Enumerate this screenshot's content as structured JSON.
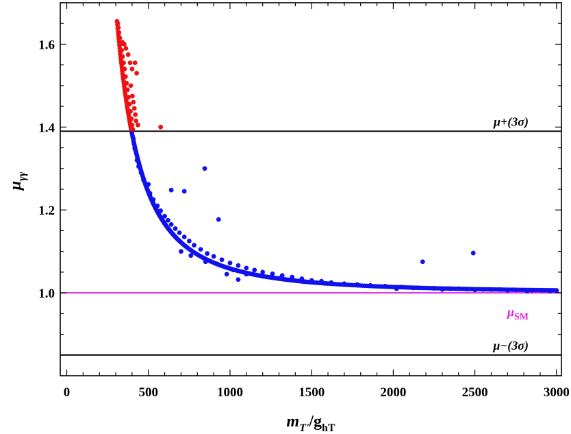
{
  "chart_data": {
    "type": "scatter",
    "xlim": [
      -40,
      3030
    ],
    "ylim": [
      0.8,
      1.7
    ],
    "x_ticks": [
      0,
      500,
      1000,
      1500,
      2000,
      2500,
      3000
    ],
    "y_ticks": [
      1.0,
      1.2,
      1.4,
      1.6
    ],
    "x_tick_labels": [
      "0",
      "500",
      "1000",
      "1500",
      "2000",
      "2500",
      "3000"
    ],
    "y_tick_labels": [
      "1.0",
      "1.2",
      "1.4",
      "1.6"
    ],
    "x_minor_step": 100,
    "y_minor_step": 0.05,
    "xlabel": {
      "base": "m",
      "sub": "T'",
      "rest": "/g",
      "sub2": "hT"
    },
    "ylabel": {
      "base": "μ",
      "sub": "γγ"
    },
    "reference_lines": [
      {
        "name": "mu-plus-3sigma",
        "y": 1.39,
        "color": "#000000",
        "label": "μ+(3σ)"
      },
      {
        "name": "mu-sm",
        "y": 1.0,
        "color": "#e020e0",
        "label_base": "μ",
        "label_sub": "SM"
      },
      {
        "name": "mu-minus-3sigma",
        "y": 0.85,
        "color": "#000000",
        "label": "μ−(3σ)"
      }
    ],
    "curve": {
      "a": 34.58,
      "b": -0.26,
      "c": 1.0023,
      "x_start": 308
    },
    "series": [
      {
        "name": "excluded",
        "color": "#ee1111",
        "points": [
          [
            308,
            1.655
          ],
          [
            312,
            1.65
          ],
          [
            316,
            1.64
          ],
          [
            320,
            1.628
          ],
          [
            325,
            1.615
          ],
          [
            330,
            1.6
          ],
          [
            336,
            1.585
          ],
          [
            342,
            1.57
          ],
          [
            348,
            1.555
          ],
          [
            354,
            1.54
          ],
          [
            360,
            1.522
          ],
          [
            366,
            1.506
          ],
          [
            372,
            1.49
          ],
          [
            378,
            1.472
          ],
          [
            384,
            1.455
          ],
          [
            390,
            1.438
          ],
          [
            396,
            1.42
          ],
          [
            400,
            1.405
          ],
          [
            404,
            1.395
          ],
          [
            340,
            1.605
          ],
          [
            352,
            1.6
          ],
          [
            362,
            1.59
          ],
          [
            376,
            1.575
          ],
          [
            388,
            1.555
          ],
          [
            400,
            1.54
          ],
          [
            418,
            1.555
          ],
          [
            428,
            1.53
          ],
          [
            392,
            1.5
          ],
          [
            402,
            1.475
          ],
          [
            408,
            1.46
          ],
          [
            414,
            1.445
          ],
          [
            420,
            1.43
          ],
          [
            424,
            1.415
          ],
          [
            436,
            1.405
          ],
          [
            575,
            1.4
          ]
        ]
      },
      {
        "name": "allowed",
        "color": "#1111ee",
        "points": [
          [
            408,
            1.372
          ],
          [
            412,
            1.36
          ],
          [
            416,
            1.348
          ],
          [
            430,
            1.32
          ],
          [
            440,
            1.305
          ],
          [
            455,
            1.29
          ],
          [
            470,
            1.272
          ],
          [
            490,
            1.255
          ],
          [
            510,
            1.24
          ],
          [
            530,
            1.225
          ],
          [
            555,
            1.21
          ],
          [
            575,
            1.198
          ],
          [
            600,
            1.185
          ],
          [
            620,
            1.175
          ],
          [
            640,
            1.165
          ],
          [
            665,
            1.155
          ],
          [
            690,
            1.145
          ],
          [
            720,
            1.135
          ],
          [
            750,
            1.125
          ],
          [
            780,
            1.115
          ],
          [
            820,
            1.105
          ],
          [
            860,
            1.095
          ],
          [
            900,
            1.088
          ],
          [
            950,
            1.08
          ],
          [
            1000,
            1.072
          ],
          [
            1050,
            1.066
          ],
          [
            1100,
            1.06
          ],
          [
            1150,
            1.055
          ],
          [
            1200,
            1.05
          ],
          [
            1260,
            1.046
          ],
          [
            1320,
            1.042
          ],
          [
            1380,
            1.038
          ],
          [
            1440,
            1.034
          ],
          [
            1500,
            1.03
          ],
          [
            1560,
            1.028
          ],
          [
            1620,
            1.025
          ],
          [
            1700,
            1.022
          ],
          [
            1780,
            1.02
          ],
          [
            1860,
            1.018
          ],
          [
            1950,
            1.016
          ],
          [
            2050,
            1.014
          ],
          [
            2150,
            1.012
          ],
          [
            2250,
            1.011
          ],
          [
            2350,
            1.01
          ],
          [
            2450,
            1.009
          ],
          [
            2550,
            1.008
          ],
          [
            2650,
            1.008
          ],
          [
            2750,
            1.007
          ],
          [
            2850,
            1.006
          ],
          [
            2950,
            1.006
          ],
          [
            3000,
            1.005
          ],
          [
            845,
            1.3
          ],
          [
            640,
            1.248
          ],
          [
            720,
            1.245
          ],
          [
            500,
            1.262
          ],
          [
            930,
            1.177
          ],
          [
            2180,
            1.075
          ],
          [
            2490,
            1.096
          ],
          [
            700,
            1.1
          ],
          [
            760,
            1.09
          ],
          [
            850,
            1.075
          ],
          [
            920,
            1.07
          ],
          [
            980,
            1.045
          ],
          [
            1050,
            1.032
          ],
          [
            1020,
            1.055
          ],
          [
            1100,
            1.045
          ],
          [
            1200,
            1.04
          ],
          [
            1300,
            1.035
          ],
          [
            1450,
            1.027
          ],
          [
            2020,
            1.01
          ],
          [
            2120,
            1.012
          ],
          [
            2300,
            1.008
          ],
          [
            2400,
            1.01
          ],
          [
            2500,
            1.007
          ],
          [
            2600,
            1.008
          ],
          [
            2700,
            1.006
          ],
          [
            2820,
            1.004
          ],
          [
            2910,
            1.006
          ],
          [
            2960,
            1.004
          ]
        ]
      }
    ]
  }
}
